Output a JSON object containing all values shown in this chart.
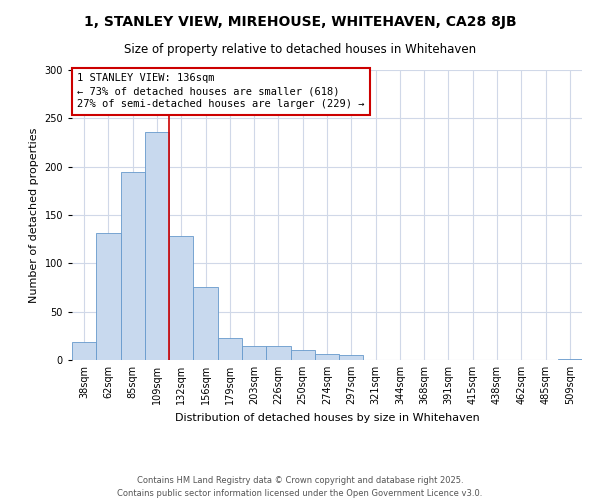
{
  "title": "1, STANLEY VIEW, MIREHOUSE, WHITEHAVEN, CA28 8JB",
  "subtitle": "Size of property relative to detached houses in Whitehaven",
  "xlabel": "Distribution of detached houses by size in Whitehaven",
  "ylabel": "Number of detached properties",
  "bar_color": "#c8d9ee",
  "bar_edge_color": "#6699cc",
  "bin_labels": [
    "38sqm",
    "62sqm",
    "85sqm",
    "109sqm",
    "132sqm",
    "156sqm",
    "179sqm",
    "203sqm",
    "226sqm",
    "250sqm",
    "274sqm",
    "297sqm",
    "321sqm",
    "344sqm",
    "368sqm",
    "391sqm",
    "415sqm",
    "438sqm",
    "462sqm",
    "485sqm",
    "509sqm"
  ],
  "bin_values": [
    19,
    131,
    194,
    236,
    128,
    76,
    23,
    14,
    15,
    10,
    6,
    5,
    0,
    0,
    0,
    0,
    0,
    0,
    0,
    0,
    1
  ],
  "ylim": [
    0,
    300
  ],
  "yticks": [
    0,
    50,
    100,
    150,
    200,
    250,
    300
  ],
  "vline_index": 3.5,
  "property_line_label": "1 STANLEY VIEW: 136sqm",
  "annotation_line1": "← 73% of detached houses are smaller (618)",
  "annotation_line2": "27% of semi-detached houses are larger (229) →",
  "annotation_box_color": "#ffffff",
  "annotation_box_edge_color": "#cc0000",
  "vline_color": "#cc0000",
  "footer_line1": "Contains HM Land Registry data © Crown copyright and database right 2025.",
  "footer_line2": "Contains public sector information licensed under the Open Government Licence v3.0.",
  "background_color": "#ffffff",
  "grid_color": "#d0d8e8",
  "title_fontsize": 10,
  "subtitle_fontsize": 8.5,
  "axis_label_fontsize": 8,
  "tick_fontsize": 7,
  "annotation_fontsize": 7.5,
  "footer_fontsize": 6
}
